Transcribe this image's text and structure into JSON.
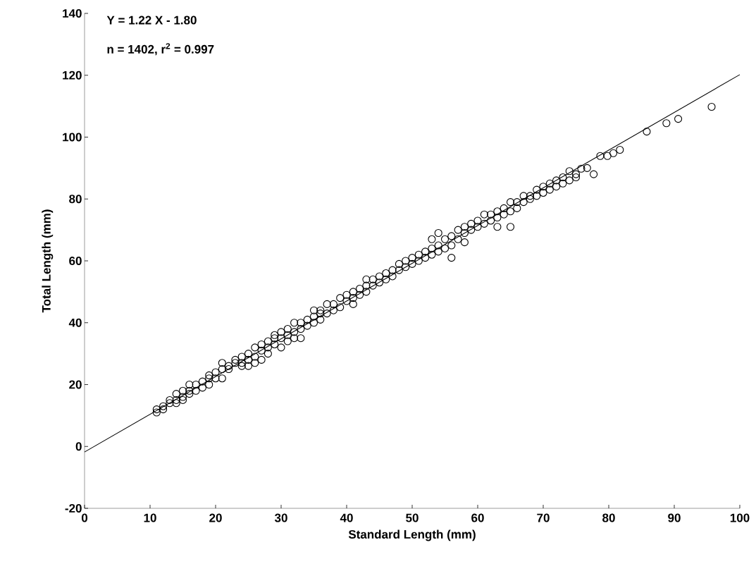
{
  "chart_data": {
    "type": "scatter",
    "xlabel": "Standard Length (mm)",
    "ylabel": "Total Length (mm)",
    "annotations": [
      "Y = 1.22 X  - 1.80",
      "n = 1402, r$^{2}$ = 0.997"
    ],
    "xlim": [
      0,
      100
    ],
    "ylim": [
      -20,
      140
    ],
    "xticks": [
      0,
      10,
      20,
      30,
      40,
      50,
      60,
      70,
      80,
      90,
      100
    ],
    "yticks": [
      -20,
      0,
      20,
      40,
      60,
      80,
      100,
      120,
      140
    ],
    "grid": false,
    "series": [
      {
        "color": "#000000",
        "marker": "circle",
        "x": [
          11,
          11,
          12,
          12,
          13,
          13,
          14,
          14,
          14,
          15,
          15,
          15,
          16,
          16,
          16,
          17,
          17,
          18,
          18,
          19,
          19,
          19,
          20,
          20,
          21,
          21,
          21,
          22,
          22,
          23,
          23,
          24,
          24,
          24,
          25,
          25,
          25,
          26,
          26,
          26,
          27,
          27,
          27,
          28,
          28,
          28,
          29,
          29,
          29,
          30,
          30,
          30,
          31,
          31,
          31,
          32,
          32,
          32,
          33,
          33,
          33,
          34,
          34,
          35,
          35,
          35,
          36,
          36,
          36,
          37,
          37,
          38,
          38,
          39,
          39,
          40,
          40,
          41,
          41,
          41,
          42,
          42,
          43,
          43,
          43,
          44,
          44,
          45,
          45,
          46,
          46,
          47,
          47,
          48,
          48,
          49,
          49,
          50,
          50,
          51,
          51,
          52,
          52,
          53,
          53,
          53,
          54,
          54,
          54,
          55,
          55,
          56,
          56,
          56,
          57,
          57,
          58,
          58,
          58,
          59,
          59,
          60,
          60,
          61,
          61,
          62,
          62,
          63,
          63,
          63,
          64,
          64,
          65,
          65,
          65,
          66,
          66,
          67,
          67,
          68,
          68,
          69,
          69,
          70,
          70,
          71,
          71,
          72,
          72,
          73,
          73,
          74,
          74,
          75,
          75,
          75.8,
          76.7,
          77.7,
          78.7,
          79.8,
          80.7,
          81.7,
          85.8,
          88.8,
          90.6,
          95.7
        ],
        "values": [
          11,
          12,
          12,
          13,
          14,
          15,
          15,
          17,
          14,
          16,
          18,
          15,
          17,
          20,
          18,
          20,
          18,
          21,
          19,
          23,
          20,
          22,
          24,
          22,
          27,
          25,
          22,
          25,
          26,
          27,
          28,
          29,
          27,
          26,
          30,
          28,
          26,
          32,
          29,
          27,
          31,
          33,
          28,
          34,
          30,
          32,
          36,
          33,
          35,
          37,
          32,
          35,
          38,
          36,
          34,
          40,
          37,
          35,
          40,
          38,
          35,
          41,
          39,
          44,
          42,
          40,
          44,
          41,
          43,
          46,
          43,
          46,
          44,
          48,
          45,
          49,
          47,
          50,
          48,
          46,
          51,
          49,
          54,
          52,
          50,
          54,
          52,
          55,
          53,
          56,
          54,
          57,
          55,
          59,
          57,
          60,
          58,
          61,
          59,
          62,
          60,
          63,
          61,
          67,
          64,
          62,
          69,
          65,
          63,
          67,
          64,
          68,
          65,
          61,
          70,
          67,
          71,
          69,
          66,
          72,
          70,
          73,
          71,
          75,
          72,
          75,
          73,
          76,
          71,
          74,
          77,
          75,
          79,
          76,
          71,
          79,
          77,
          81,
          79,
          81,
          80,
          83,
          81,
          84,
          82,
          85,
          83,
          86,
          84,
          87,
          85,
          89,
          86,
          88,
          87,
          89.8,
          90,
          88,
          93.9,
          93.9,
          94.8,
          95.9,
          101.8,
          104.5,
          105.9,
          109.8
        ]
      },
      {
        "type": "line",
        "color": "#000000",
        "marker": "none",
        "line_style": "solid",
        "x": [
          0,
          100
        ],
        "values": [
          -1.8,
          120.2
        ]
      }
    ]
  }
}
